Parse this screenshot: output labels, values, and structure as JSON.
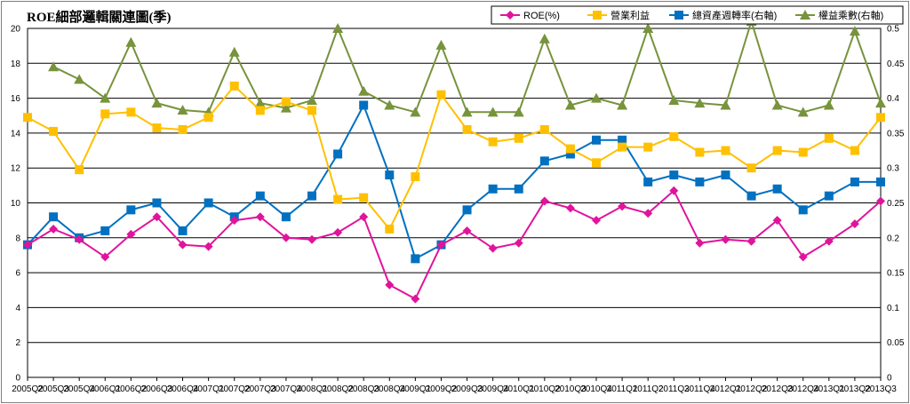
{
  "chart_data": {
    "type": "line",
    "title": "ROE細部邏輯關連圖(季)",
    "categories": [
      "2005Q2",
      "2005Q3",
      "2005Q4",
      "2006Q1",
      "2006Q2",
      "2006Q3",
      "2006Q4",
      "2007Q1",
      "2007Q2",
      "2007Q3",
      "2007Q4",
      "2008Q1",
      "2008Q2",
      "2008Q3",
      "2008Q4",
      "2009Q1",
      "2009Q2",
      "2009Q3",
      "2009Q4",
      "2010Q1",
      "2010Q2",
      "2010Q3",
      "2010Q4",
      "2011Q1",
      "2011Q2",
      "2011Q3",
      "2011Q4",
      "2012Q1",
      "2012Q2",
      "2012Q3",
      "2012Q4",
      "2013Q1",
      "2013Q2",
      "2013Q3"
    ],
    "y_left": {
      "min": 0,
      "max": 20,
      "ticks": [
        "0",
        "2",
        "4",
        "6",
        "8",
        "10",
        "12",
        "14",
        "16",
        "18",
        "20"
      ]
    },
    "y_right": {
      "min": 0,
      "max": 0.5,
      "ticks": [
        "0",
        "0.05",
        "0.1",
        "0.15",
        "0.2",
        "0.25",
        "0.3",
        "0.35",
        "0.4",
        "0.45",
        "0.5"
      ]
    },
    "grid": true,
    "legend": "top-right",
    "series": [
      {
        "name": "ROE(%)",
        "axis": "left",
        "color": "#e0149c",
        "marker": "diamond",
        "values": [
          7.6,
          8.5,
          7.9,
          6.9,
          8.2,
          9.2,
          7.6,
          7.5,
          9.0,
          9.2,
          8.0,
          7.9,
          8.3,
          9.2,
          5.3,
          4.5,
          7.6,
          8.4,
          7.4,
          7.7,
          10.1,
          9.7,
          9.0,
          9.8,
          9.4,
          10.7,
          7.7,
          7.9,
          7.8,
          9.0,
          6.9,
          7.8,
          8.8,
          10.1
        ]
      },
      {
        "name": "營業利益",
        "axis": "left",
        "color": "#ffc000",
        "marker": "square",
        "values": [
          14.9,
          14.1,
          11.9,
          15.1,
          15.2,
          14.3,
          14.2,
          14.9,
          16.7,
          15.3,
          15.8,
          15.3,
          10.2,
          10.3,
          8.5,
          11.5,
          16.2,
          14.2,
          13.5,
          13.7,
          14.2,
          13.1,
          12.3,
          13.2,
          13.2,
          13.8,
          12.9,
          13.0,
          12.0,
          13.0,
          12.9,
          13.7,
          13.0,
          14.9
        ]
      },
      {
        "name": "總資產週轉率(右軸)",
        "axis": "right",
        "color": "#0070c0",
        "marker": "square",
        "values": [
          0.19,
          0.23,
          0.2,
          0.21,
          0.24,
          0.25,
          0.21,
          0.25,
          0.23,
          0.26,
          0.23,
          0.26,
          0.32,
          0.39,
          0.29,
          0.17,
          0.19,
          0.24,
          0.27,
          0.27,
          0.31,
          0.32,
          0.34,
          0.34,
          0.28,
          0.29,
          0.28,
          0.29,
          0.26,
          0.27,
          0.24,
          0.26,
          0.28,
          0.28
        ]
      },
      {
        "name": "權益乘數(右軸)",
        "axis": "right",
        "color": "#77933c",
        "marker": "triangle",
        "values": [
          null,
          0.445,
          0.427,
          0.4,
          0.48,
          0.393,
          0.383,
          0.38,
          0.466,
          0.393,
          0.386,
          0.397,
          0.5,
          0.41,
          0.39,
          0.38,
          0.476,
          0.38,
          0.38,
          0.38,
          0.485,
          0.39,
          0.4,
          0.39,
          0.5,
          0.397,
          0.393,
          0.39,
          0.51,
          0.39,
          0.38,
          0.39,
          0.496,
          0.393
        ]
      }
    ]
  }
}
